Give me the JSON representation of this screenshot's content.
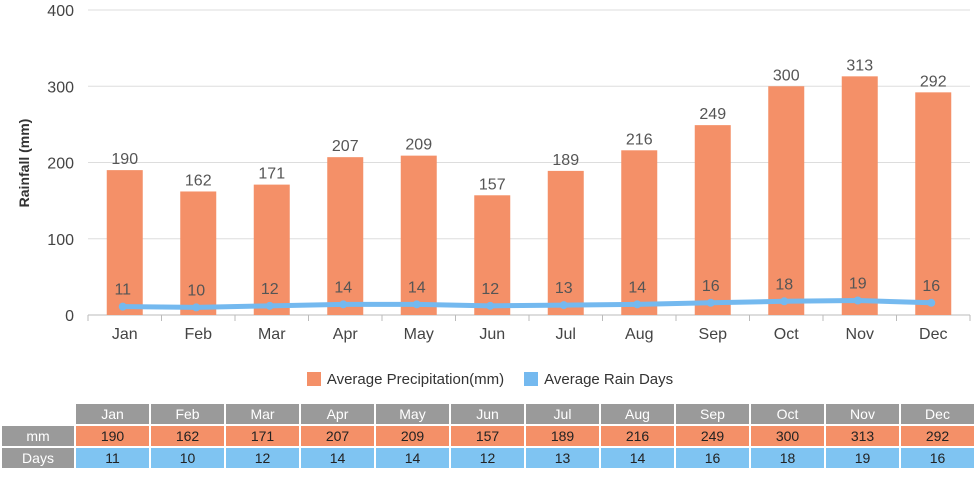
{
  "chart_data": {
    "type": "bar",
    "categories": [
      "Jan",
      "Feb",
      "Mar",
      "Apr",
      "May",
      "Jun",
      "Jul",
      "Aug",
      "Sep",
      "Oct",
      "Nov",
      "Dec"
    ],
    "series": [
      {
        "name": "Average Precipitation(mm)",
        "type": "bar",
        "color": "#f49068",
        "values": [
          190,
          162,
          171,
          207,
          209,
          157,
          189,
          216,
          249,
          300,
          313,
          292
        ]
      },
      {
        "name": "Average Rain Days",
        "type": "line",
        "color": "#74b9ef",
        "values": [
          11,
          10,
          12,
          14,
          14,
          12,
          13,
          14,
          16,
          18,
          19,
          16
        ]
      }
    ],
    "ylabel": "Rainfall (mm)",
    "xlabel": "",
    "ylim": [
      0,
      400
    ],
    "yticks": [
      0,
      100,
      200,
      300,
      400
    ],
    "grid": true,
    "legend_position": "bottom-center"
  },
  "table": {
    "months": [
      "Jan",
      "Feb",
      "Mar",
      "Apr",
      "May",
      "Jun",
      "Jul",
      "Aug",
      "Sep",
      "Oct",
      "Nov",
      "Dec"
    ],
    "rows": [
      {
        "label": "mm",
        "values": [
          "190",
          "162",
          "171",
          "207",
          "209",
          "157",
          "189",
          "216",
          "249",
          "300",
          "313",
          "292"
        ]
      },
      {
        "label": "Days",
        "values": [
          "11",
          "10",
          "12",
          "14",
          "14",
          "12",
          "13",
          "14",
          "16",
          "18",
          "19",
          "16"
        ]
      }
    ]
  }
}
